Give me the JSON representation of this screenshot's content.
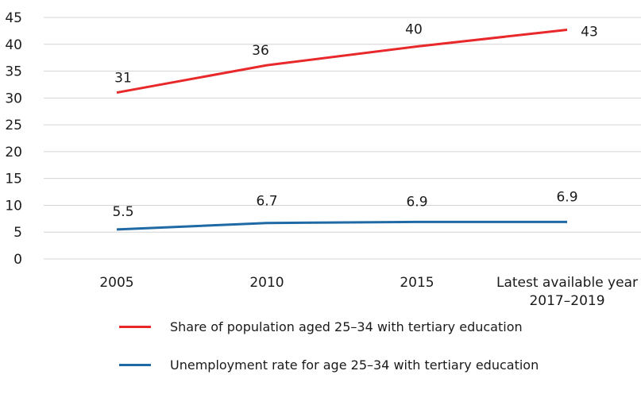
{
  "chart_data": {
    "type": "line",
    "categories": [
      "2005",
      "2010",
      "2015",
      "Latest available year\n2017–2019"
    ],
    "ylim": [
      0,
      45
    ],
    "yticks": [
      0,
      5,
      10,
      15,
      20,
      25,
      30,
      35,
      40,
      45
    ],
    "grid": "horizontal",
    "legend_position": "bottom",
    "series": [
      {
        "name": "Share of population aged 25–34 with tertiary education",
        "color": "#e8282b",
        "values": [
          31,
          36.1,
          39.6,
          42.7
        ],
        "labels": [
          "31",
          "36",
          "40",
          "43"
        ]
      },
      {
        "name": "Unemployment rate for age 25–34 with tertiary education",
        "color": "#1f6aa5",
        "values": [
          5.5,
          6.7,
          6.9,
          6.9
        ],
        "labels": [
          "5.5",
          "6.7",
          "6.9",
          "6.9"
        ]
      }
    ]
  }
}
